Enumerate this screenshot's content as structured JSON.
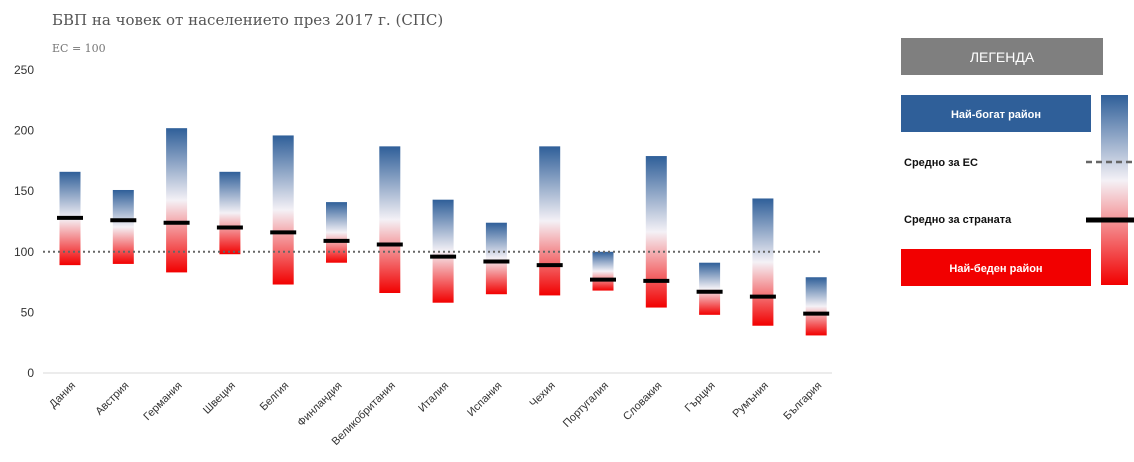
{
  "colors": {
    "rich": "#2f5f99",
    "mid": "#f4f1f6",
    "poor": "#f20000",
    "country_avg": "#000000",
    "eu_avg": "#666666",
    "legend_header": "#7f7f7f"
  },
  "chart_data": {
    "type": "range-bar",
    "title": "БВП на човек от населението през 2017 г. (СПС)",
    "subtitle": "ЕС = 100",
    "ylim": [
      0,
      250
    ],
    "yticks": [
      0,
      50,
      100,
      150,
      200,
      250
    ],
    "eu_average": 100,
    "categories": [
      "Дания",
      "Австрия",
      "Германия",
      "Швеция",
      "Белгия",
      "Финландия",
      "Великобритания",
      "Италия",
      "Испания",
      "Чехия",
      "Португалия",
      "Словакия",
      "Гърция",
      "Румъния",
      "България"
    ],
    "series": [
      {
        "name": "Най-богат район",
        "values": [
          166,
          151,
          202,
          166,
          196,
          141,
          187,
          143,
          124,
          187,
          100,
          179,
          91,
          144,
          79
        ]
      },
      {
        "name": "Средно за страната",
        "values": [
          128,
          126,
          124,
          120,
          116,
          109,
          106,
          96,
          92,
          89,
          77,
          76,
          67,
          63,
          49
        ]
      },
      {
        "name": "Най-беден район",
        "values": [
          89,
          90,
          83,
          98,
          73,
          91,
          66,
          58,
          65,
          64,
          68,
          54,
          48,
          39,
          31
        ]
      }
    ],
    "legend": {
      "header": "ЛЕГЕНДА",
      "rich": "Най-богат район",
      "eu_avg": "Средно за ЕС",
      "country_avg": "Средно за страната",
      "poor": "Най-беден район"
    }
  }
}
